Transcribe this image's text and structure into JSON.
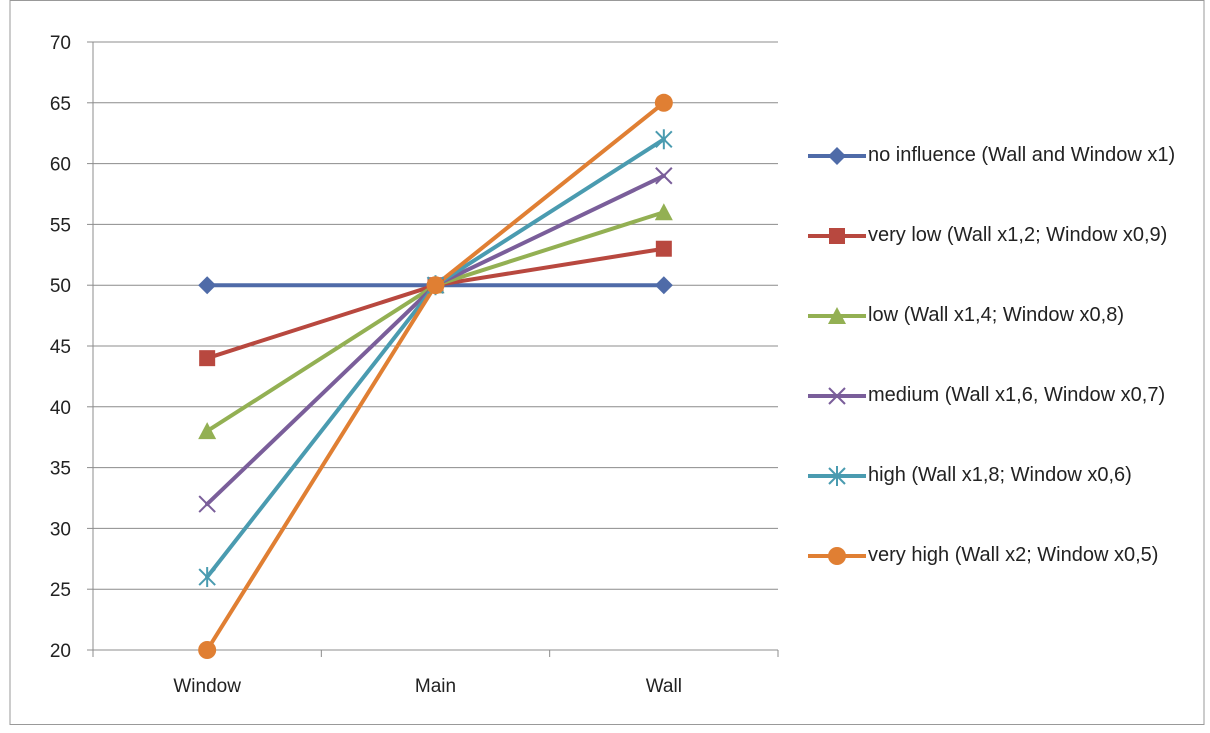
{
  "chart_data": {
    "type": "line",
    "categories": [
      "Window",
      "Main",
      "Wall"
    ],
    "ylim": [
      20,
      70
    ],
    "yticks": [
      20,
      25,
      30,
      35,
      40,
      45,
      50,
      55,
      60,
      65,
      70
    ],
    "grid": true,
    "legend_position": "right",
    "series": [
      {
        "name": "no influence (Wall and Window x1)",
        "values": [
          50,
          50,
          50
        ],
        "color": "#4F6BA8",
        "marker": "diamond"
      },
      {
        "name": "very low (Wall x1,2; Window x0,9)",
        "values": [
          44,
          50,
          53
        ],
        "color": "#B8483F",
        "marker": "square"
      },
      {
        "name": "low (Wall x1,4; Window x0,8)",
        "values": [
          38,
          50,
          56
        ],
        "color": "#93B053",
        "marker": "triangle"
      },
      {
        "name": "medium (Wall x1,6, Window x0,7)",
        "values": [
          32,
          50,
          59
        ],
        "color": "#7A5E9A",
        "marker": "x"
      },
      {
        "name": "high (Wall x1,8; Window x0,6)",
        "values": [
          26,
          50,
          62
        ],
        "color": "#4A9BB0",
        "marker": "star"
      },
      {
        "name": "very high (Wall x2; Window x0,5)",
        "values": [
          20,
          50,
          65
        ],
        "color": "#E07F33",
        "marker": "circle"
      }
    ]
  }
}
